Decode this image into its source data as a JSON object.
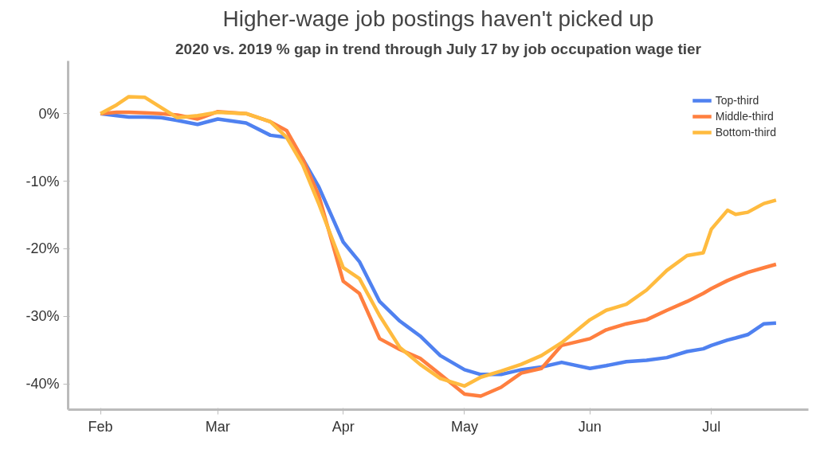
{
  "chart_data": {
    "type": "line",
    "title": "Higher-wage job postings haven't picked up",
    "subtitle": "2020 vs. 2019 % gap in trend through July 17 by job occupation wage tier",
    "x": [
      "2020-02-01",
      "2020-02-05",
      "2020-02-08",
      "2020-02-12",
      "2020-02-16",
      "2020-02-20",
      "2020-02-25",
      "2020-03-01",
      "2020-03-08",
      "2020-03-14",
      "2020-03-18",
      "2020-03-22",
      "2020-03-26",
      "2020-04-01",
      "2020-04-05",
      "2020-04-10",
      "2020-04-15",
      "2020-04-20",
      "2020-04-25",
      "2020-05-01",
      "2020-05-05",
      "2020-05-10",
      "2020-05-15",
      "2020-05-20",
      "2020-05-25",
      "2020-06-01",
      "2020-06-05",
      "2020-06-10",
      "2020-06-15",
      "2020-06-20",
      "2020-06-25",
      "2020-06-29",
      "2020-07-01",
      "2020-07-05",
      "2020-07-07",
      "2020-07-10",
      "2020-07-14",
      "2020-07-17"
    ],
    "series": [
      {
        "name": "Top-third",
        "color": "#4f81f0",
        "values": [
          0,
          -0.3,
          -0.5,
          -0.5,
          -0.6,
          -1.0,
          -1.6,
          -0.8,
          -1.4,
          -3.2,
          -3.5,
          -6.7,
          -10.9,
          -19.0,
          -21.9,
          -27.8,
          -30.7,
          -32.9,
          -35.8,
          -37.9,
          -38.6,
          -38.6,
          -37.9,
          -37.5,
          -36.8,
          -37.7,
          -37.3,
          -36.7,
          -36.5,
          -36.1,
          -35.2,
          -34.8,
          -34.3,
          -33.5,
          -33.2,
          -32.7,
          -31.1,
          -31.0
        ]
      },
      {
        "name": "Middle-third",
        "color": "#ff7f3f",
        "values": [
          0,
          0.2,
          0.2,
          0.1,
          0.0,
          -0.2,
          -0.8,
          0.3,
          0.0,
          -1.2,
          -2.5,
          -6.7,
          -12.2,
          -24.8,
          -26.6,
          -33.3,
          -34.9,
          -36.2,
          -38.6,
          -41.5,
          -41.8,
          -40.5,
          -38.4,
          -37.7,
          -34.3,
          -33.3,
          -32.0,
          -31.1,
          -30.5,
          -29.1,
          -27.8,
          -26.6,
          -25.9,
          -24.7,
          -24.2,
          -23.5,
          -22.8,
          -22.3
        ]
      },
      {
        "name": "Bottom-third",
        "color": "#ffbb3f",
        "values": [
          0,
          1.3,
          2.5,
          2.4,
          0.9,
          -0.6,
          -0.3,
          0.2,
          0.0,
          -1.2,
          -3.5,
          -7.6,
          -13.4,
          -22.8,
          -24.4,
          -29.9,
          -34.6,
          -37.1,
          -39.2,
          -40.3,
          -39.0,
          -38.1,
          -37.1,
          -35.8,
          -33.9,
          -30.5,
          -29.1,
          -28.2,
          -26.1,
          -23.2,
          -21.0,
          -20.6,
          -17.1,
          -14.3,
          -14.9,
          -14.6,
          -13.3,
          -12.8
        ]
      }
    ],
    "xlim": [
      "2020-01-24",
      "2020-07-25"
    ],
    "xticks": [
      {
        "value": "2020-02-01",
        "label": "Feb"
      },
      {
        "value": "2020-03-01",
        "label": "Mar"
      },
      {
        "value": "2020-04-01",
        "label": "Apr"
      },
      {
        "value": "2020-05-01",
        "label": "May"
      },
      {
        "value": "2020-06-01",
        "label": "Jun"
      },
      {
        "value": "2020-07-01",
        "label": "Jul"
      }
    ],
    "ylim": [
      -43.8,
      7.8
    ],
    "yticks": [
      {
        "value": 0,
        "label": "0%"
      },
      {
        "value": -10,
        "label": "-10%"
      },
      {
        "value": -20,
        "label": "-20%"
      },
      {
        "value": -30,
        "label": "-30%"
      },
      {
        "value": -40,
        "label": "-40%"
      }
    ],
    "grid": false,
    "legend": "top right",
    "marker": "none",
    "line_style": "solid"
  }
}
